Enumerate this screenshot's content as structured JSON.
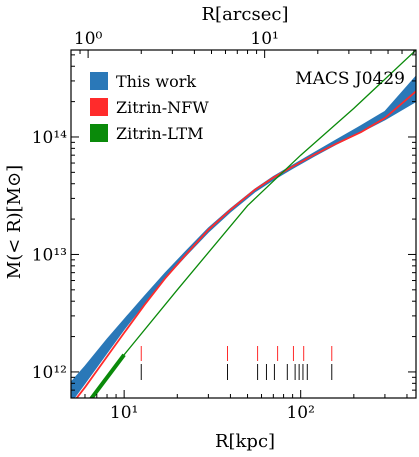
{
  "chart_data": {
    "type": "line",
    "title": "",
    "panel_label": "MACS J0429",
    "xlabel": "R[kpc]",
    "xlabel_top": "R[arcsec]",
    "ylabel": "M(< R)[M⊙]",
    "xscale": "log",
    "yscale": "log",
    "xlim": [
      5,
      450
    ],
    "ylim": [
      600000000000.0,
      550000000000000.0
    ],
    "xlim_top_arcsec": [
      0.8,
      72
    ],
    "x_ticks": [
      {
        "value": 10,
        "label": "10¹"
      },
      {
        "value": 100,
        "label": "10²"
      }
    ],
    "x_ticks_top": [
      {
        "value": 1,
        "label": "10⁰"
      },
      {
        "value": 10,
        "label": "10¹"
      }
    ],
    "y_ticks": [
      {
        "value": 1000000000000.0,
        "label": "10¹²"
      },
      {
        "value": 10000000000000.0,
        "label": "10¹³"
      },
      {
        "value": 100000000000000.0,
        "label": "10¹⁴"
      }
    ],
    "legend_position": "top-left",
    "grid": false,
    "series": [
      {
        "name": "This work",
        "color": "#2a78b8",
        "style": "band",
        "x": [
          5,
          6,
          8,
          10,
          13,
          17,
          22,
          30,
          40,
          55,
          70,
          90,
          120,
          160,
          220,
          300,
          450
        ],
        "lower": [
          550000000000.0,
          800000000000.0,
          1450000000000.0,
          2300000000000.0,
          3800000000000.0,
          6200000000000.0,
          9500000000000.0,
          15500000000000.0,
          23000000000000.0,
          34000000000000.0,
          43000000000000.0,
          54000000000000.0,
          69000000000000.0,
          87000000000000.0,
          110000000000000.0,
          140000000000000.0,
          200000000000000.0
        ],
        "upper": [
          820000000000.0,
          1120000000000.0,
          1900000000000.0,
          2800000000000.0,
          4400000000000.0,
          6900000000000.0,
          10400000000000.0,
          16800000000000.0,
          24500000000000.0,
          36000000000000.0,
          46000000000000.0,
          57500000000000.0,
          74000000000000.0,
          95000000000000.0,
          125000000000000.0,
          165000000000000.0,
          330000000000000.0
        ]
      },
      {
        "name": "Zitrin-NFW",
        "color": "#ff2b2b",
        "style": "line",
        "x": [
          5,
          6,
          8,
          10,
          13,
          17,
          22,
          30,
          40,
          55,
          70,
          90,
          120,
          160,
          220,
          300,
          450
        ],
        "y": [
          520000000000.0,
          740000000000.0,
          1350000000000.0,
          2150000000000.0,
          3700000000000.0,
          6200000000000.0,
          9700000000000.0,
          16200000000000.0,
          24000000000000.0,
          35500000000000.0,
          45000000000000.0,
          56000000000000.0,
          71000000000000.0,
          88000000000000.0,
          110000000000000.0,
          145000000000000.0,
          245000000000000.0
        ]
      },
      {
        "name": "Zitrin-LTM",
        "color": "#0a8a0a",
        "style": "line",
        "x": [
          5,
          10,
          20,
          50,
          100,
          200,
          450
        ],
        "y": [
          350000000000.0,
          1400000000000.0,
          5000000000000.0,
          26000000000000.0,
          70000000000000.0,
          175000000000000.0,
          550000000000000.0
        ]
      }
    ],
    "multiple_image_ticks": {
      "red_x": [
        12.5,
        38.5,
        57,
        74,
        91,
        104,
        150
      ],
      "black_x": [
        12.5,
        38.5,
        57,
        64,
        71,
        84,
        93,
        98,
        103,
        109,
        150
      ]
    }
  }
}
